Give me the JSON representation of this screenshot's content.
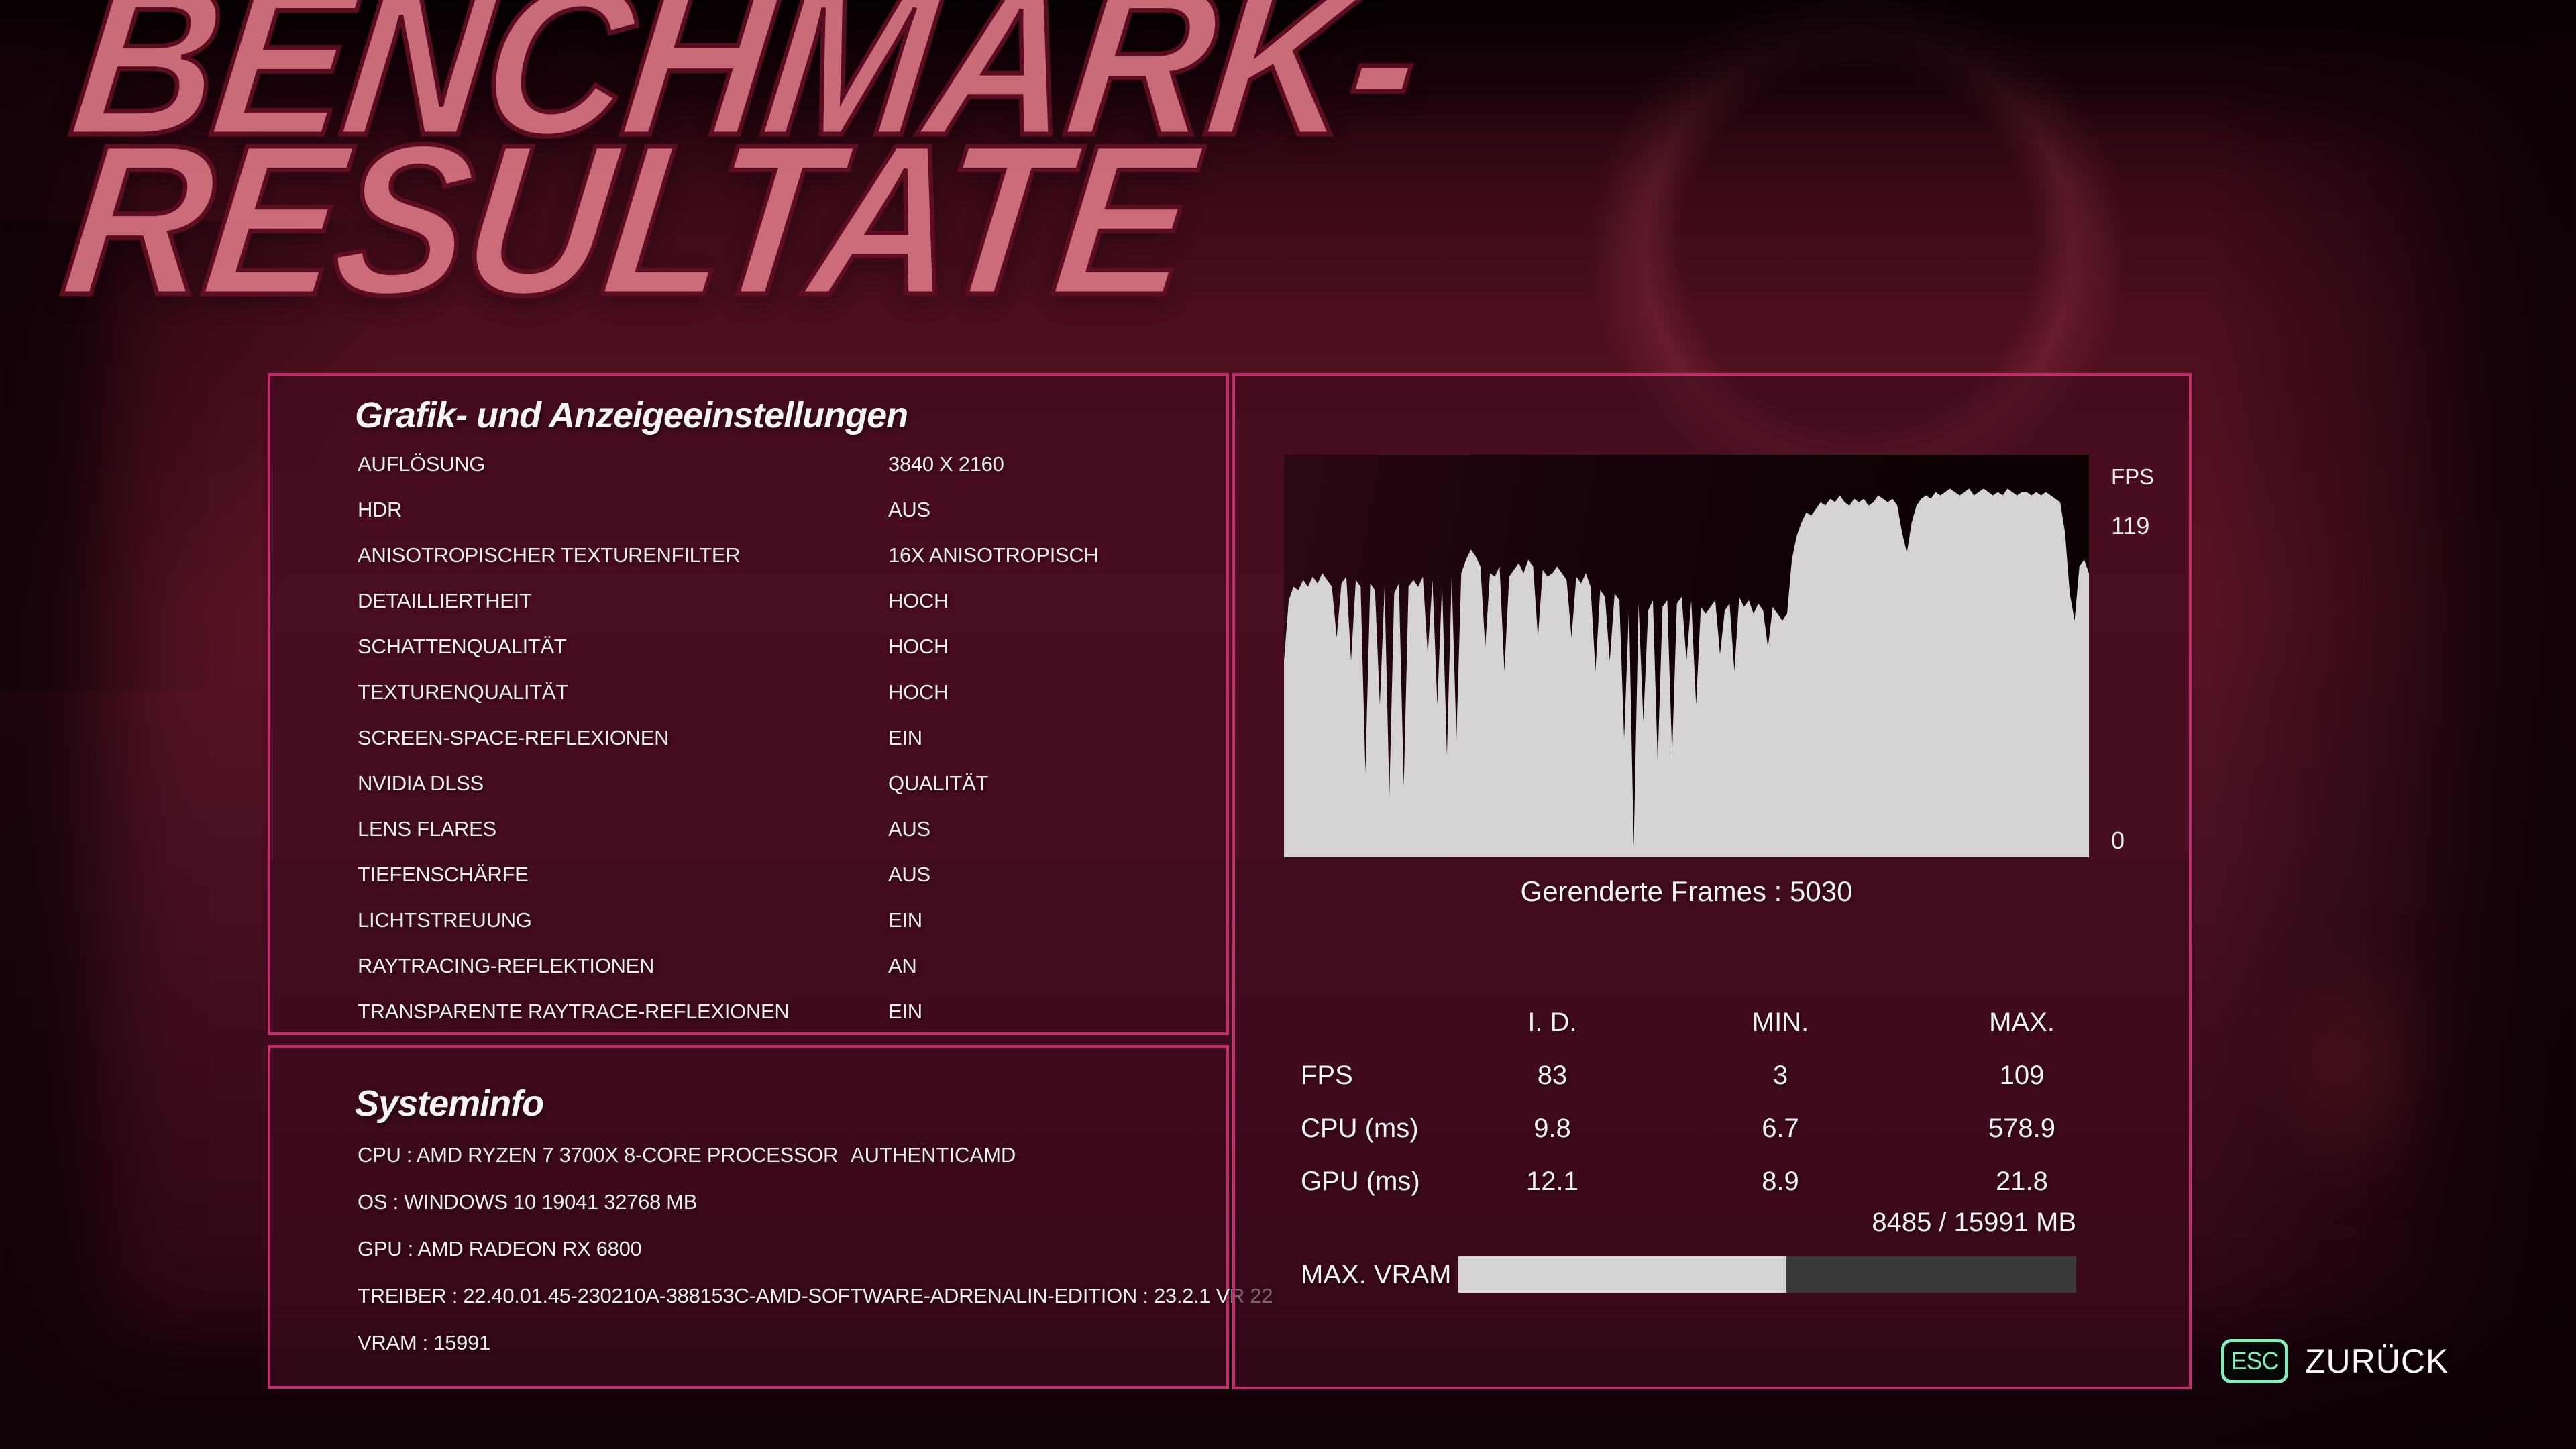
{
  "title": {
    "line1": "BENCHMARK-",
    "line2": "RESULTATE"
  },
  "graphics_panel": {
    "heading": "Grafik- und Anzeigeeinstellungen",
    "settings": [
      {
        "label": "AUFLÖSUNG",
        "value": "3840 X 2160"
      },
      {
        "label": "HDR",
        "value": "AUS"
      },
      {
        "label": "ANISOTROPISCHER TEXTURENFILTER",
        "value": "16X ANISOTROPISCH"
      },
      {
        "label": "DETAILLIERTHEIT",
        "value": "HOCH"
      },
      {
        "label": "SCHATTENQUALITÄT",
        "value": "HOCH"
      },
      {
        "label": "TEXTURENQUALITÄT",
        "value": "HOCH"
      },
      {
        "label": "SCREEN-SPACE-REFLEXIONEN",
        "value": "EIN"
      },
      {
        "label": "NVIDIA DLSS",
        "value": "QUALITÄT"
      },
      {
        "label": "LENS FLARES",
        "value": "AUS"
      },
      {
        "label": "TIEFENSCHÄRFE",
        "value": "AUS"
      },
      {
        "label": "LICHTSTREUUNG",
        "value": "EIN"
      },
      {
        "label": "RAYTRACING-REFLEKTIONEN",
        "value": "AN"
      },
      {
        "label": "TRANSPARENTE RAYTRACE-REFLEXIONEN",
        "value": "EIN"
      }
    ]
  },
  "system_panel": {
    "heading": "Systeminfo",
    "lines": [
      {
        "label": "CPU : AMD RYZEN 7 3700X 8-CORE PROCESSOR",
        "extra": "AUTHENTICAMD"
      },
      {
        "label": "OS : WINDOWS 10 19041 32768 MB",
        "extra": ""
      },
      {
        "label": "GPU : AMD RADEON RX 6800",
        "extra": ""
      },
      {
        "label": "TREIBER : 22.40.01.45-230210A-388153C-AMD-SOFTWARE-ADRENALIN-EDITION : 23.2.1 VR 22",
        "extra": ""
      },
      {
        "label": "VRAM : 15991",
        "extra": ""
      }
    ]
  },
  "results_panel": {
    "fps_axis": {
      "label": "FPS",
      "max": "119",
      "min": "0"
    },
    "frames_caption": "Gerenderte Frames : 5030",
    "table": {
      "columns": [
        "I. D.",
        "MIN.",
        "MAX."
      ],
      "rows": [
        {
          "label": "FPS",
          "id": "83",
          "min": "3",
          "max": "109"
        },
        {
          "label": "CPU (ms)",
          "id": "9.8",
          "min": "6.7",
          "max": "578.9"
        },
        {
          "label": "GPU (ms)",
          "id": "12.1",
          "min": "8.9",
          "max": "21.8"
        }
      ]
    },
    "vram": {
      "usage_text": "8485 / 15991 MB",
      "label": "MAX. VRAM",
      "fill_percent": 53.1
    }
  },
  "footer": {
    "esc_key": "ESC",
    "back_label": "ZURÜCK"
  },
  "colors": {
    "accent": "#c42e6f",
    "mint": "#86ecb8",
    "graph_fill": "#d6d3d4",
    "bar_rest": "#383838",
    "title_fill": "#d4717f",
    "title_outline": "#5e0e22"
  },
  "chart_data": {
    "type": "area",
    "title": "FPS-Verlauf über gerenderte Frames",
    "ylabel": "FPS",
    "ylim": [
      0,
      119
    ],
    "x_range_frames": [
      0,
      5030
    ],
    "grid": false,
    "legend": false,
    "values": [
      58,
      76,
      80,
      79,
      82,
      80,
      83,
      81,
      84,
      82,
      80,
      65,
      81,
      83,
      58,
      82,
      80,
      25,
      81,
      79,
      45,
      80,
      18,
      78,
      81,
      21,
      80,
      82,
      80,
      83,
      60,
      82,
      45,
      81,
      30,
      83,
      35,
      84,
      88,
      91,
      89,
      86,
      62,
      84,
      83,
      86,
      55,
      83,
      85,
      87,
      84,
      88,
      86,
      65,
      85,
      83,
      84,
      86,
      84,
      82,
      65,
      83,
      81,
      84,
      80,
      55,
      79,
      77,
      58,
      78,
      76,
      35,
      74,
      3,
      75,
      40,
      73,
      76,
      28,
      74,
      76,
      30,
      75,
      77,
      58,
      76,
      45,
      74,
      72,
      74,
      76,
      60,
      73,
      75,
      55,
      77,
      74,
      76,
      72,
      75,
      73,
      62,
      74,
      72,
      70,
      72,
      88,
      95,
      99,
      102,
      101,
      103,
      105,
      104,
      106,
      105,
      107,
      105,
      104,
      106,
      105,
      106,
      104,
      105,
      107,
      106,
      105,
      106,
      104,
      96,
      90,
      99,
      104,
      106,
      107,
      106,
      108,
      107,
      108,
      109,
      108,
      107,
      108,
      109,
      107,
      108,
      109,
      108,
      107,
      108,
      107,
      109,
      108,
      107,
      108,
      108,
      107,
      108,
      107,
      108,
      107,
      106,
      105,
      96,
      78,
      70,
      86,
      88,
      84
    ]
  }
}
